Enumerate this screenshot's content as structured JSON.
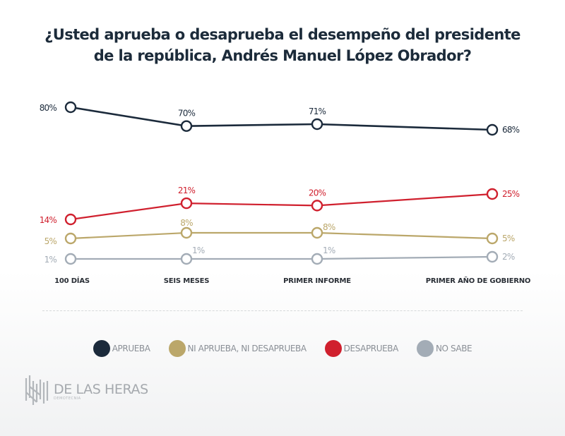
{
  "title_lines": [
    "¿Usted aprueba o desaprueba el desempeño del presidente",
    "de la república, Andrés Manuel López Obrador?"
  ],
  "chart_data": {
    "type": "line",
    "title": "¿Usted aprueba o desaprueba el desempeño del presidente de la república, Andrés Manuel López Obrador?",
    "xlabel": "",
    "ylabel": "",
    "categories": [
      "100 DÍAS",
      "SEIS MESES",
      "PRIMER INFORME",
      "PRIMER AÑO DE GOBIERNO"
    ],
    "grid": false,
    "legend_position": "bottom",
    "unit": "%",
    "series": [
      {
        "name": "APRUEBA",
        "key": "aprueba",
        "color": "#1b2a3b",
        "values": [
          80,
          70,
          71,
          68
        ]
      },
      {
        "name": "NI APRUEBA, NI DESAPRUEBA",
        "key": "ni",
        "color": "#bba76a",
        "values": [
          5,
          8,
          8,
          5
        ]
      },
      {
        "name": "DESAPRUEBA",
        "key": "desaprueba",
        "color": "#d0202e",
        "values": [
          14,
          21,
          20,
          25
        ]
      },
      {
        "name": "NO SABE",
        "key": "nosabe",
        "color": "#a3acb6",
        "values": [
          1,
          1,
          1,
          2
        ]
      }
    ]
  },
  "legend": [
    {
      "label": "APRUEBA",
      "color": "#1b2a3b"
    },
    {
      "label": "NI APRUEBA, NI DESAPRUEBA",
      "color": "#bba76a"
    },
    {
      "label": "DESAPRUEBA",
      "color": "#d0202e"
    },
    {
      "label": "NO SABE",
      "color": "#a3acb6"
    }
  ],
  "logo": {
    "name": "DE LAS HERAS",
    "subtitle": "DEMOTECNIA"
  }
}
